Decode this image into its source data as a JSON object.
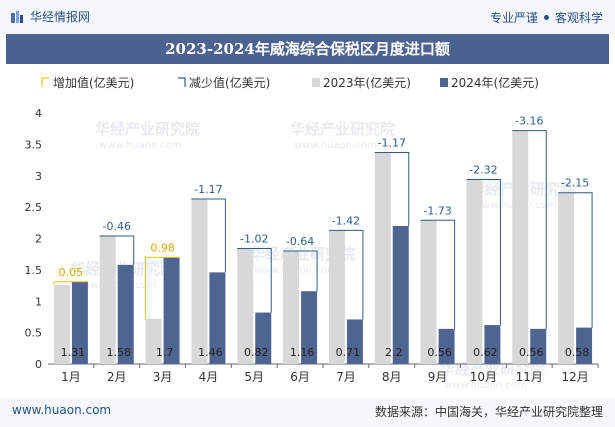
{
  "header": {
    "brand": "华经情报网",
    "tagline_left": "专业严谨",
    "tagline_right": "客观科学"
  },
  "footer": {
    "site": "www.huaon.com",
    "source": "数据来源：中国海关，华经产业研究院整理"
  },
  "watermark": {
    "text": "华经产业研究院",
    "url": "www.huaon.com"
  },
  "colors": {
    "bar_2023": "#d8d8d8",
    "bar_2024": "#4f6591",
    "increase": "#f1c40f",
    "decrease": "#2e5d8a",
    "title_bg": "#4c6391"
  },
  "chart_data": {
    "type": "bar",
    "title": "2023-2024年威海综合保税区月度进口额",
    "categories": [
      "1月",
      "2月",
      "3月",
      "4月",
      "5月",
      "6月",
      "7月",
      "8月",
      "9月",
      "10月",
      "11月",
      "12月"
    ],
    "series": [
      {
        "name": "2023年(亿美元)",
        "values": [
          1.26,
          2.04,
          0.72,
          2.63,
          1.84,
          1.8,
          2.13,
          3.37,
          2.29,
          2.94,
          3.72,
          2.73
        ]
      },
      {
        "name": "2024年(亿美元)",
        "values": [
          1.31,
          1.58,
          1.7,
          1.46,
          0.82,
          1.16,
          0.71,
          2.2,
          0.56,
          0.62,
          0.56,
          0.58
        ]
      }
    ],
    "change_labels": [
      "0.05",
      "-0.46",
      "0.98",
      "-1.17",
      "-1.02",
      "-0.64",
      "-1.42",
      "-1.17",
      "-1.73",
      "-2.32",
      "-3.16",
      "-2.15"
    ],
    "change_direction": [
      "increase",
      "decrease",
      "increase",
      "decrease",
      "decrease",
      "decrease",
      "decrease",
      "decrease",
      "decrease",
      "decrease",
      "decrease",
      "decrease"
    ],
    "value_labels": [
      "1.31",
      "1.58",
      "1.7",
      "1.46",
      "0.82",
      "1.16",
      "0.71",
      "2.2",
      "0.56",
      "0.62",
      "0.56",
      "0.58"
    ],
    "legend": [
      "增加值(亿美元)",
      "减少值(亿美元)",
      "2023年(亿美元)",
      "2024年(亿美元)"
    ],
    "legend_position": "top",
    "yticks": [
      "0",
      "0.5",
      "1",
      "1.5",
      "2",
      "2.5",
      "3",
      "3.5",
      "4"
    ],
    "ylim": [
      0,
      4
    ],
    "grid": false
  }
}
